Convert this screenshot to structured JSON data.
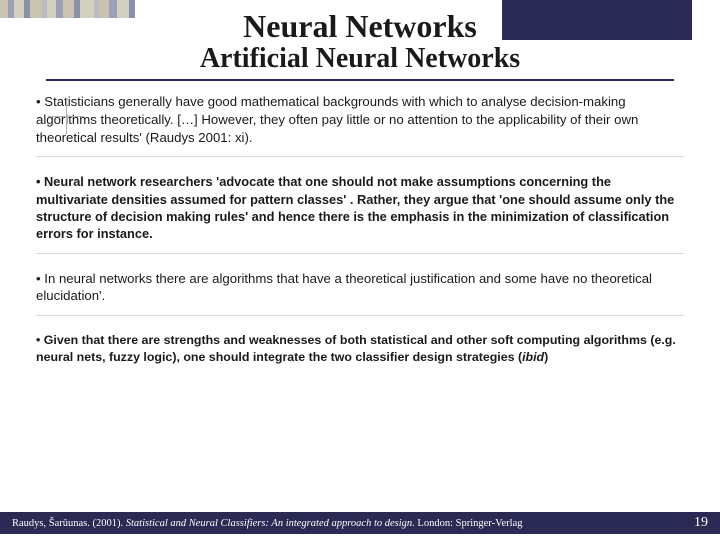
{
  "decor": {
    "bars": [
      {
        "w": 8,
        "c": "#c9c3b0"
      },
      {
        "w": 6,
        "c": "#9aa0b8"
      },
      {
        "w": 10,
        "c": "#d4d0c0"
      },
      {
        "w": 6,
        "c": "#8a90a8"
      },
      {
        "w": 12,
        "c": "#c9c3b0"
      },
      {
        "w": 5,
        "c": "#b8bcc8"
      },
      {
        "w": 9,
        "c": "#d4d0c0"
      },
      {
        "w": 7,
        "c": "#9aa0b8"
      },
      {
        "w": 11,
        "c": "#c9c3b0"
      },
      {
        "w": 6,
        "c": "#8a90a8"
      },
      {
        "w": 14,
        "c": "#d4d0c0"
      },
      {
        "w": 5,
        "c": "#b8bcc8"
      },
      {
        "w": 10,
        "c": "#c9c3b0"
      },
      {
        "w": 8,
        "c": "#9aa0b8"
      },
      {
        "w": 12,
        "c": "#d4d0c0"
      },
      {
        "w": 6,
        "c": "#8a90a8"
      }
    ],
    "corner_color": "#2a2a55",
    "underline_color": "#2a2a66",
    "footer_bg": "#2a2a55"
  },
  "title": {
    "line1": "Neural Networks",
    "line2": "Artificial Neural Networks"
  },
  "bullets": {
    "p1": "• Statisticians generally have  good mathematical backgrounds with which to analyse decision-making algorithms theoretically. […] However, they often pay little or no attention to the applicability of their own theoretical results' (Raudys 2001: xi).",
    "p2": "• Neural network researchers 'advocate that one should not make assumptions concerning the multivariate densities assumed for pattern classes' .  Rather, they argue that 'one should assume only the structure of decision making rules' and hence there is the emphasis in the minimization of classification errors for instance.",
    "p3": "• In neural networks there are algorithms that have a theoretical justification and some have no theoretical elucidation'.",
    "p4_pre": "• Given that there are strengths and weaknesses of both statistical and other soft computing algorithms (e.g. neural nets, fuzzy logic), one should integrate the two classifier design strategies (",
    "p4_ibid": "ibid",
    "p4_post": ")"
  },
  "footer": {
    "author": "Raudys, Šarūunas.  (2001). ",
    "title_ital": "Statistical and Neural Classifiers: An integrated approach to design.",
    "publisher": "  London: Springer-Verlag",
    "page": "19"
  }
}
